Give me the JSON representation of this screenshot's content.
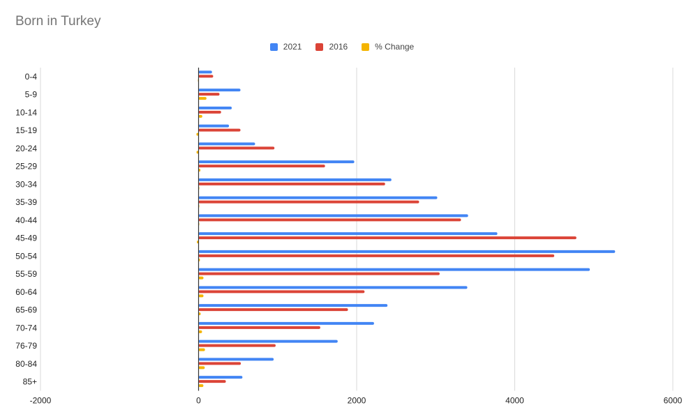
{
  "chart_data": {
    "type": "bar",
    "orientation": "horizontal",
    "title": "Born in Turkey",
    "legend_position": "top",
    "grid": true,
    "categories": [
      "0-4",
      "5-9",
      "10-14",
      "15-19",
      "20-24",
      "25-29",
      "30-34",
      "35-39",
      "40-44",
      "45-49",
      "50-54",
      "55-59",
      "60-64",
      "65-69",
      "70-74",
      "76-79",
      "80-84",
      "85+"
    ],
    "series": [
      {
        "name": "2021",
        "color": "#4285F4",
        "values": [
          170,
          530,
          420,
          385,
          715,
          1970,
          2440,
          3020,
          3410,
          3780,
          5270,
          4950,
          3400,
          2390,
          2220,
          1760,
          950,
          555
        ]
      },
      {
        "name": "2016",
        "color": "#DB4437",
        "values": [
          185,
          265,
          285,
          530,
          960,
          1600,
          2360,
          2790,
          3320,
          4780,
          4500,
          3050,
          2100,
          1890,
          1540,
          975,
          535,
          345
        ]
      },
      {
        "name": "% Change",
        "color": "#F4B400",
        "values": [
          -8,
          100,
          47,
          -27,
          -26,
          23,
          3,
          8,
          3,
          -21,
          17,
          62,
          62,
          26,
          44,
          81,
          78,
          61
        ]
      }
    ],
    "x_ticks": [
      -2000,
      0,
      2000,
      4000,
      6000
    ],
    "x_tick_labels": [
      "-2000",
      "0",
      "2000",
      "4000",
      "6000"
    ],
    "xlim": [
      -2000,
      6000
    ]
  }
}
